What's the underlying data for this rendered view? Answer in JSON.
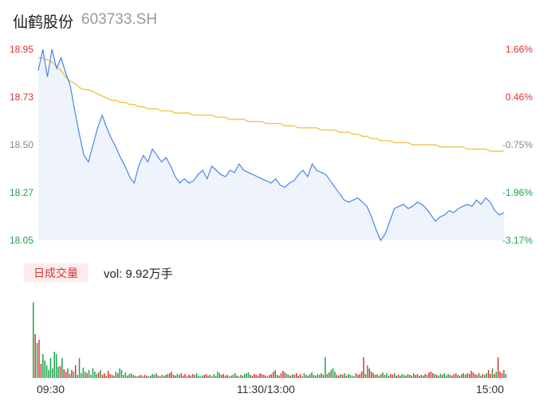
{
  "header": {
    "name": "仙鹤股份",
    "code": "603733.SH"
  },
  "volume_panel": {
    "badge_label": "日成交量",
    "vol_label": "vol: 9.92万手"
  },
  "colors": {
    "up": "#e0302f",
    "down": "#1aa34a",
    "neutral": "#888888",
    "price_line": "#4a86e8",
    "avg_line": "#f5b631",
    "area_fill": "#eef3fc",
    "badge_bg": "#fdecec"
  },
  "chart_data": [
    {
      "type": "line",
      "series": [
        {
          "values": [
            18.85,
            18.95,
            18.82,
            18.95,
            18.86,
            18.91,
            18.84,
            18.78,
            18.66,
            18.55,
            18.45,
            18.42,
            18.5,
            18.58,
            18.64,
            18.58,
            18.53,
            18.49,
            18.44,
            18.4,
            18.35,
            18.32,
            18.4,
            18.45,
            18.42,
            18.48,
            18.45,
            18.42,
            18.44,
            18.4,
            18.35,
            18.32,
            18.34,
            18.32,
            18.33,
            18.36,
            18.38,
            18.34,
            18.4,
            18.38,
            18.36,
            18.35,
            18.38,
            18.37,
            18.41,
            18.38,
            18.37,
            18.36,
            18.35,
            18.34,
            18.33,
            18.32,
            18.34,
            18.31,
            18.3,
            18.32,
            18.33,
            18.36,
            18.38,
            18.35,
            18.41,
            18.38,
            18.37,
            18.36,
            18.33,
            18.3,
            18.27,
            18.24,
            18.23,
            18.24,
            18.25,
            18.23,
            18.21,
            18.16,
            18.1,
            18.05,
            18.08,
            18.14,
            18.2,
            18.21,
            18.22,
            18.2,
            18.21,
            18.23,
            18.22,
            18.2,
            18.17,
            18.14,
            18.16,
            18.17,
            18.19,
            18.18,
            18.2,
            18.21,
            18.22,
            18.21,
            18.24,
            18.22,
            18.25,
            18.23,
            18.19,
            18.17,
            18.18
          ]
        },
        {
          "values": [
            18.91,
            18.91,
            18.9,
            18.89,
            18.87,
            18.85,
            18.82,
            18.8,
            18.79,
            18.77,
            18.76,
            18.76,
            18.75,
            18.74,
            18.73,
            18.72,
            18.71,
            18.71,
            18.7,
            18.7,
            18.69,
            18.69,
            18.68,
            18.68,
            18.67,
            18.67,
            18.67,
            18.66,
            18.66,
            18.66,
            18.65,
            18.65,
            18.65,
            18.65,
            18.64,
            18.64,
            18.64,
            18.64,
            18.64,
            18.63,
            18.63,
            18.63,
            18.62,
            18.62,
            18.62,
            18.62,
            18.61,
            18.61,
            18.61,
            18.61,
            18.6,
            18.6,
            18.6,
            18.6,
            18.59,
            18.59,
            18.59,
            18.58,
            18.58,
            18.58,
            18.58,
            18.58,
            18.57,
            18.57,
            18.57,
            18.57,
            18.56,
            18.56,
            18.56,
            18.55,
            18.55,
            18.54,
            18.54,
            18.53,
            18.53,
            18.52,
            18.52,
            18.52,
            18.51,
            18.51,
            18.51,
            18.51,
            18.5,
            18.5,
            18.5,
            18.5,
            18.5,
            18.5,
            18.49,
            18.49,
            18.49,
            18.49,
            18.49,
            18.49,
            18.48,
            18.48,
            18.48,
            18.48,
            18.48,
            18.47,
            18.47,
            18.47,
            18.47
          ]
        }
      ],
      "yticks_left": [
        "18.95",
        "18.73",
        "18.50",
        "18.27",
        "18.05"
      ],
      "yticks_right": [
        "1.66%",
        "0.46%",
        "-0.75%",
        "-1.96%",
        "-3.17%"
      ],
      "ylim": [
        18.05,
        18.95
      ],
      "xticks": [
        "09:30",
        "11:30/13:00",
        "15:00"
      ]
    },
    {
      "type": "bar",
      "values": [
        95,
        55,
        44,
        48,
        18,
        30,
        22,
        16,
        10,
        25,
        12,
        33,
        30,
        14,
        15,
        25,
        11,
        8,
        12,
        5,
        10,
        8,
        16,
        4,
        25,
        6,
        13,
        8,
        6,
        10,
        4,
        12,
        8,
        5,
        7,
        10,
        4,
        6,
        3,
        9,
        5,
        4,
        3,
        8,
        6,
        12,
        10,
        4,
        7,
        3,
        5,
        6,
        4,
        3,
        2,
        3,
        4,
        2,
        4,
        3,
        2,
        3,
        5,
        4,
        6,
        3,
        2,
        4,
        3,
        4,
        5,
        6,
        8,
        4,
        3,
        5,
        4,
        6,
        3,
        5,
        2,
        4,
        3,
        5,
        4,
        6,
        3,
        2,
        3,
        4,
        5,
        3,
        4,
        2,
        5,
        3,
        8,
        6,
        4,
        5,
        3,
        4,
        2,
        3,
        4,
        6,
        3,
        2,
        4,
        3,
        5,
        6,
        7,
        4,
        3,
        5,
        4,
        3,
        6,
        5,
        4,
        3,
        2,
        4,
        5,
        8,
        10,
        4,
        3,
        6,
        9,
        7,
        5,
        4,
        3,
        5,
        4,
        6,
        3,
        5,
        2,
        6,
        4,
        3,
        5,
        7,
        4,
        3,
        5,
        4,
        6,
        4,
        26,
        5,
        7,
        10,
        12,
        8,
        4,
        3,
        5,
        4,
        6,
        3,
        5,
        4,
        3,
        2,
        6,
        4,
        5,
        8,
        26,
        5,
        16,
        12,
        8,
        6,
        4,
        5,
        3,
        5,
        7,
        4,
        6,
        3,
        5,
        4,
        6,
        3,
        4,
        3,
        5,
        4,
        3,
        5,
        4,
        3,
        6,
        4,
        5,
        3,
        4,
        3,
        5,
        4,
        7,
        8,
        6,
        5,
        4,
        3,
        5,
        4,
        6,
        3,
        5,
        4,
        3,
        5,
        6,
        4,
        3,
        5,
        6,
        4,
        6,
        5,
        9,
        7,
        5,
        4,
        6,
        3,
        5,
        4,
        6,
        10,
        5,
        12,
        5,
        8,
        26,
        8,
        6,
        10,
        5
      ],
      "colors": [
        "#1aa34a",
        "#e0302f",
        "#1aa34a",
        "#e0302f",
        "#e0302f",
        "#1aa34a",
        "#1aa34a",
        "#1aa34a",
        "#1aa34a",
        "#1aa34a",
        "#1aa34a",
        "#1aa34a",
        "#1aa34a",
        "#1aa34a",
        "#e0302f",
        "#1aa34a",
        "#e0302f",
        "#e0302f",
        "#1aa34a",
        "#e0302f",
        "#e0302f",
        "#1aa34a",
        "#e0302f",
        "#1aa34a",
        "#1aa34a",
        "#1aa34a",
        "#1aa34a",
        "#1aa34a",
        "#e0302f",
        "#1aa34a",
        "#1aa34a",
        "#1aa34a",
        "#1aa34a",
        "#1aa34a",
        "#e0302f",
        "#1aa34a",
        "#e0302f",
        "#e0302f",
        "#e0302f",
        "#e0302f",
        "#e0302f",
        "#e0302f",
        "#1aa34a",
        "#1aa34a",
        "#e0302f",
        "#1aa34a",
        "#1aa34a",
        "#1aa34a",
        "#1aa34a",
        "#1aa34a",
        "#1aa34a",
        "#1aa34a",
        "#e0302f",
        "#1aa34a",
        "#1aa34a",
        "#e0302f",
        "#e0302f",
        "#1aa34a",
        "#e0302f",
        "#e0302f",
        "#1aa34a",
        "#1aa34a",
        "#1aa34a",
        "#e0302f",
        "#1aa34a",
        "#e0302f",
        "#e0302f",
        "#1aa34a",
        "#1aa34a",
        "#1aa34a",
        "#e0302f",
        "#e0302f",
        "#e0302f",
        "#e0302f",
        "#1aa34a",
        "#1aa34a",
        "#1aa34a",
        "#e0302f",
        "#e0302f",
        "#e0302f",
        "#e0302f",
        "#e0302f",
        "#e0302f",
        "#e0302f",
        "#1aa34a",
        "#1aa34a",
        "#1aa34a",
        "#1aa34a",
        "#1aa34a",
        "#e0302f",
        "#e0302f",
        "#1aa34a",
        "#e0302f",
        "#1aa34a",
        "#1aa34a",
        "#1aa34a",
        "#1aa34a",
        "#1aa34a",
        "#e0302f",
        "#e0302f",
        "#e0302f",
        "#e0302f",
        "#1aa34a",
        "#e0302f",
        "#1aa34a",
        "#1aa34a",
        "#e0302f",
        "#1aa34a",
        "#1aa34a",
        "#e0302f",
        "#1aa34a",
        "#1aa34a",
        "#1aa34a",
        "#1aa34a",
        "#e0302f",
        "#e0302f",
        "#e0302f",
        "#e0302f",
        "#e0302f",
        "#e0302f",
        "#e0302f",
        "#e0302f",
        "#1aa34a",
        "#e0302f",
        "#e0302f",
        "#e0302f",
        "#1aa34a",
        "#e0302f",
        "#1aa34a",
        "#e0302f",
        "#e0302f",
        "#e0302f",
        "#1aa34a",
        "#1aa34a",
        "#e0302f",
        "#1aa34a",
        "#e0302f",
        "#e0302f",
        "#e0302f",
        "#e0302f",
        "#1aa34a",
        "#1aa34a",
        "#1aa34a",
        "#e0302f",
        "#1aa34a",
        "#1aa34a",
        "#e0302f",
        "#1aa34a",
        "#1aa34a",
        "#1aa34a",
        "#e0302f",
        "#1aa34a",
        "#1aa34a",
        "#1aa34a",
        "#e0302f",
        "#1aa34a",
        "#1aa34a",
        "#1aa34a",
        "#e0302f",
        "#e0302f",
        "#1aa34a",
        "#e0302f",
        "#1aa34a",
        "#e0302f",
        "#1aa34a",
        "#1aa34a",
        "#1aa34a",
        "#1aa34a",
        "#e0302f",
        "#e0302f",
        "#e0302f",
        "#e0302f",
        "#e0302f",
        "#1aa34a",
        "#1aa34a",
        "#e0302f",
        "#e0302f",
        "#e0302f",
        "#e0302f",
        "#1aa34a",
        "#1aa34a",
        "#e0302f",
        "#1aa34a",
        "#1aa34a",
        "#1aa34a",
        "#1aa34a",
        "#e0302f",
        "#e0302f",
        "#1aa34a",
        "#e0302f",
        "#e0302f",
        "#1aa34a",
        "#1aa34a",
        "#1aa34a",
        "#e0302f",
        "#1aa34a",
        "#e0302f",
        "#1aa34a",
        "#1aa34a",
        "#e0302f",
        "#e0302f",
        "#1aa34a",
        "#e0302f",
        "#1aa34a",
        "#e0302f",
        "#1aa34a",
        "#e0302f",
        "#e0302f",
        "#e0302f",
        "#1aa34a",
        "#e0302f",
        "#1aa34a",
        "#1aa34a",
        "#e0302f",
        "#1aa34a",
        "#1aa34a",
        "#1aa34a",
        "#e0302f",
        "#e0302f",
        "#e0302f",
        "#1aa34a",
        "#e0302f",
        "#1aa34a",
        "#1aa34a",
        "#e0302f",
        "#1aa34a",
        "#1aa34a",
        "#e0302f",
        "#e0302f",
        "#e0302f",
        "#e0302f",
        "#1aa34a",
        "#e0302f",
        "#1aa34a",
        "#e0302f",
        "#1aa34a",
        "#1aa34a",
        "#e0302f",
        "#e0302f",
        "#1aa34a",
        "#e0302f",
        "#1aa34a",
        "#e0302f",
        "#e0302f",
        "#e0302f",
        "#1aa34a",
        "#e0302f",
        "#1aa34a",
        "#1aa34a",
        "#e0302f",
        "#e0302f"
      ]
    }
  ]
}
